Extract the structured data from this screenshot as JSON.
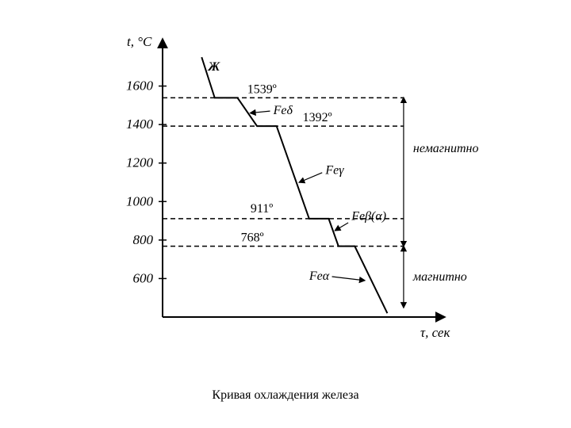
{
  "chart": {
    "type": "line",
    "y_axis_label": "t, °C",
    "x_axis_label": "τ, сек",
    "y_ticks": [
      1600,
      1400,
      1200,
      1000,
      800,
      600
    ],
    "y_range": [
      400,
      1800
    ],
    "plateau_temps": {
      "t1539": 1539,
      "t1392": 1392,
      "t911": 911,
      "t768": 768
    },
    "temp_labels": {
      "t1539": "1539º",
      "t1392": "1392º",
      "t911": "911º",
      "t768": "768º"
    },
    "phase_labels": {
      "liquid": "Ж",
      "delta": "Feδ",
      "gamma": "Feγ",
      "beta": "Feβ(α)",
      "alpha": "Feα"
    },
    "side_labels": {
      "nonmagnetic": "немагнитно",
      "magnetic": "магнитно"
    },
    "caption": "Кривая охлаждения железа",
    "colors": {
      "line": "#000000",
      "background": "#ffffff",
      "dashed": "#000000"
    },
    "line_width": 2,
    "dashed_pattern": "6,4",
    "curve_points": [
      [
        60,
        1750
      ],
      [
        80,
        1539
      ],
      [
        115,
        1539
      ],
      [
        145,
        1392
      ],
      [
        175,
        1392
      ],
      [
        225,
        911
      ],
      [
        255,
        911
      ],
      [
        270,
        768
      ],
      [
        295,
        768
      ],
      [
        345,
        420
      ]
    ]
  }
}
